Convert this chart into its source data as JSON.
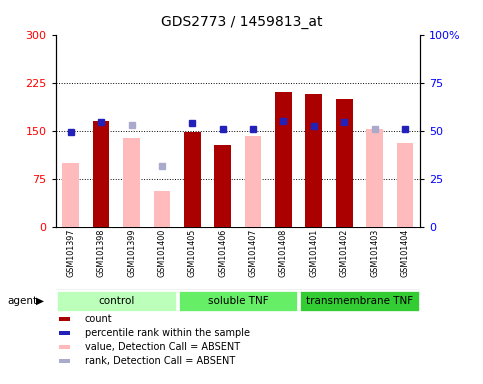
{
  "title": "GDS2773 / 1459813_at",
  "samples": [
    "GSM101397",
    "GSM101398",
    "GSM101399",
    "GSM101400",
    "GSM101405",
    "GSM101406",
    "GSM101407",
    "GSM101408",
    "GSM101401",
    "GSM101402",
    "GSM101403",
    "GSM101404"
  ],
  "groups": [
    {
      "label": "control",
      "start": 0,
      "end": 4,
      "color": "#bbffbb"
    },
    {
      "label": "soluble TNF",
      "start": 4,
      "end": 8,
      "color": "#66ee66"
    },
    {
      "label": "transmembrane TNF",
      "start": 8,
      "end": 12,
      "color": "#33cc33"
    }
  ],
  "count_present": [
    null,
    165,
    null,
    null,
    147,
    128,
    null,
    210,
    207,
    200,
    null,
    null
  ],
  "count_absent": [
    100,
    null,
    138,
    55,
    null,
    null,
    142,
    null,
    null,
    null,
    153,
    130
  ],
  "rank_present": [
    148,
    163,
    null,
    null,
    162,
    152,
    152,
    165,
    157,
    163,
    null,
    153
  ],
  "rank_absent": [
    null,
    null,
    158,
    95,
    null,
    null,
    null,
    null,
    null,
    null,
    152,
    null
  ],
  "ylim_left": [
    0,
    300
  ],
  "ylim_right": [
    0,
    100
  ],
  "yticks_left": [
    0,
    75,
    150,
    225,
    300
  ],
  "ytick_labels_left": [
    "0",
    "75",
    "150",
    "225",
    "300"
  ],
  "ytick_labels_right": [
    "0",
    "25",
    "50",
    "75",
    "100%"
  ],
  "hlines": [
    75,
    150,
    225
  ],
  "count_color": "#aa0000",
  "count_absent_color": "#ffbbbb",
  "rank_color": "#2222bb",
  "rank_absent_color": "#aaaacc",
  "legend_items": [
    {
      "color": "#aa0000",
      "label": "count"
    },
    {
      "color": "#2222bb",
      "label": "percentile rank within the sample"
    },
    {
      "color": "#ffbbbb",
      "label": "value, Detection Call = ABSENT"
    },
    {
      "color": "#aaaacc",
      "label": "rank, Detection Call = ABSENT"
    }
  ]
}
